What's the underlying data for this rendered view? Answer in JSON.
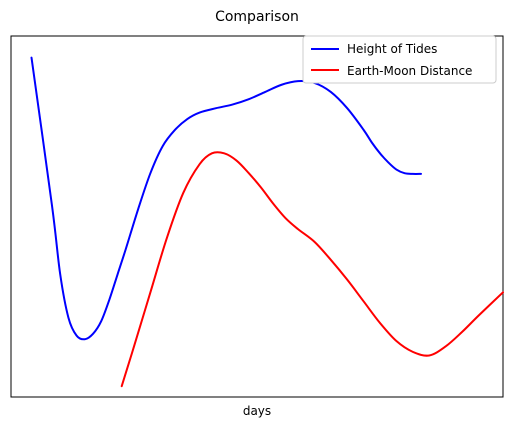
{
  "chart_data": {
    "type": "line",
    "title": "Comparison",
    "xlabel": "days",
    "ylabel": "",
    "grid": false,
    "legend": "top-right",
    "x_ticks_visible": false,
    "y_ticks_visible": false,
    "xlim": [
      0,
      120
    ],
    "ylim": [
      0,
      100
    ],
    "series": [
      {
        "name": "Height of Tides",
        "color": "#0000ff",
        "x": [
          5,
          10,
          12,
          14,
          16,
          18,
          20,
          22,
          24,
          26,
          28,
          31,
          34,
          37,
          40,
          43,
          46,
          50,
          54,
          58,
          62,
          66,
          70,
          74,
          78,
          82,
          86,
          88,
          90,
          92,
          94,
          96,
          98,
          100
        ],
        "y": [
          94,
          53,
          34,
          22,
          17,
          16,
          17.5,
          21,
          27,
          34,
          41,
          52,
          62,
          69.5,
          74,
          77,
          78.8,
          80,
          81,
          82.5,
          84.5,
          86.5,
          87.5,
          87,
          84.5,
          80,
          74,
          70.5,
          67.5,
          65,
          63,
          62,
          61.8,
          61.8
        ]
      },
      {
        "name": "Earth-Moon Distance",
        "color": "#ff0000",
        "x": [
          27,
          30,
          34,
          38,
          42,
          46,
          49,
          52,
          55,
          58,
          61,
          64,
          67,
          70,
          74,
          78,
          82,
          86,
          90,
          94,
          98,
          102,
          106,
          110,
          114,
          120
        ],
        "y": [
          3,
          14,
          29,
          44,
          56.5,
          64.5,
          67.5,
          67.5,
          65.5,
          62,
          58,
          53.5,
          49.5,
          46.5,
          43,
          38,
          32.5,
          26.5,
          20.5,
          15.5,
          12.5,
          11.5,
          14,
          18,
          22.5,
          29
        ]
      }
    ]
  }
}
